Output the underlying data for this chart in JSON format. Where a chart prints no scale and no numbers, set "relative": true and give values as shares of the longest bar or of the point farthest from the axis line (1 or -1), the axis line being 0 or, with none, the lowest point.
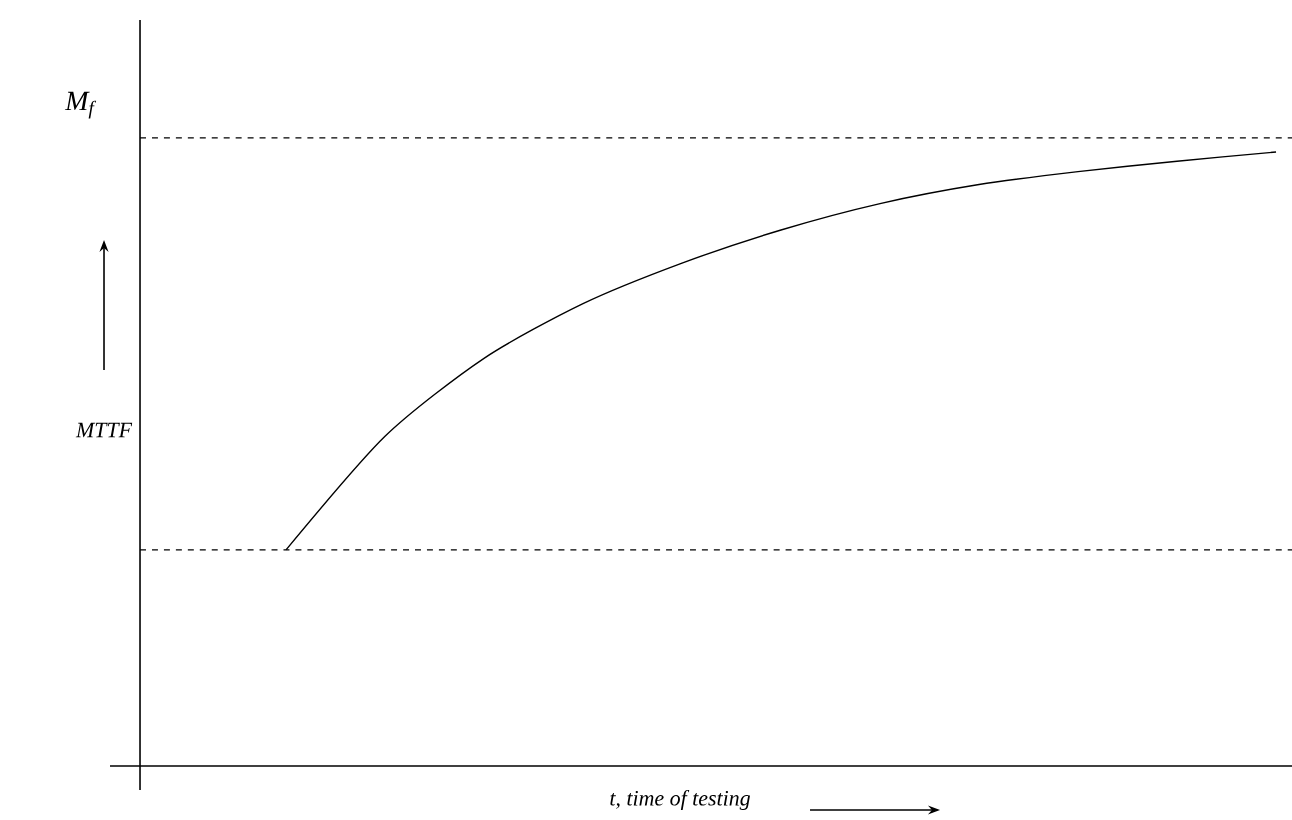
{
  "chart_data": {
    "type": "line",
    "relative": true,
    "xlabel": "t, time of testing",
    "ylabel": "MTTF",
    "categories": [
      null,
      null,
      null,
      null,
      null,
      null,
      null,
      null,
      null,
      null,
      null
    ],
    "values": [
      0.352,
      0.537,
      0.664,
      0.753,
      0.819,
      0.873,
      0.916,
      0.947,
      0.968,
      0.985,
      1.0
    ],
    "color": "#000000",
    "line_style": "solid",
    "ref_lines": [
      {
        "axis": "y",
        "value": 1.023,
        "label": "M$_{f}$",
        "line_style": "dashed",
        "color": "#000000"
      },
      {
        "axis": "y",
        "value": 0.352,
        "label": null,
        "line_style": "dashed",
        "color": "#000000"
      }
    ]
  }
}
